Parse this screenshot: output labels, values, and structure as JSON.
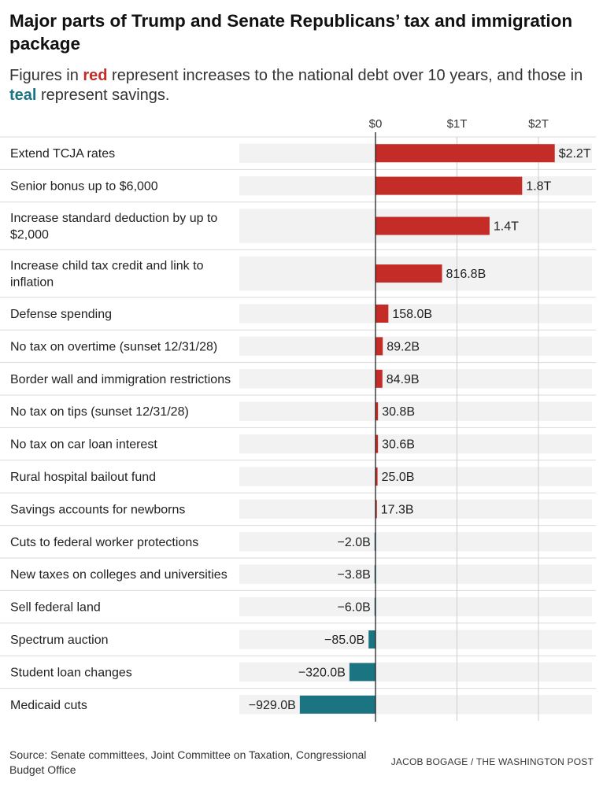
{
  "title": "Major parts of Trump and Senate Republicans’ tax and immigration package",
  "subtitle": {
    "part1": "Figures in ",
    "red_word": "red",
    "part2": " represent increases to the national debt over 10 years, and those in ",
    "teal_word": "teal",
    "part3": " represent savings."
  },
  "colors": {
    "increase": "#c42c28",
    "savings": "#1b7482",
    "track": "#f2f2f2",
    "divider": "#d9d9d9",
    "gridline": "#cccccc",
    "zero_line": "#222222"
  },
  "chart_data": {
    "type": "bar",
    "orientation": "horizontal",
    "units": "billions of dollars",
    "xlim": [
      -1700,
      2400
    ],
    "ticks": [
      {
        "value": 0,
        "label": "$0"
      },
      {
        "value": 1000,
        "label": "$1T"
      },
      {
        "value": 2000,
        "label": "$2T"
      }
    ],
    "categories": [
      "Extend TCJA rates",
      "Senior bonus up to $6,000",
      "Increase standard deduction by up to $2,000",
      "Increase child tax credit and link to inflation",
      "Defense spending",
      "No tax on overtime (sunset 12/31/28)",
      "Border wall and immigration restrictions",
      "No tax on tips (sunset 12/31/28)",
      "No tax on car loan interest",
      "Rural hospital bailout fund",
      "Savings accounts for newborns",
      "Cuts to federal worker protections",
      "New taxes on colleges and universities",
      "Sell federal land",
      "Spectrum auction",
      "Student loan changes",
      "Medicaid cuts"
    ],
    "values": [
      2200,
      1800,
      1400,
      816.8,
      158.0,
      89.2,
      84.9,
      30.8,
      30.6,
      25.0,
      17.3,
      -2.0,
      -3.8,
      -6.0,
      -85.0,
      -320.0,
      -929.0
    ],
    "value_labels": [
      "$2.2T",
      "1.8T",
      "1.4T",
      "816.8B",
      "158.0B",
      "89.2B",
      "84.9B",
      "30.8B",
      "30.6B",
      "25.0B",
      "17.3B",
      "−2.0B",
      "−3.8B",
      "−6.0B",
      "−85.0B",
      "−320.0B",
      "−929.0B"
    ]
  },
  "source": "Source: Senate committees, Joint Committee on Taxation, Congressional Budget Office",
  "credit": "JACOB BOGAGE / THE WASHINGTON POST"
}
